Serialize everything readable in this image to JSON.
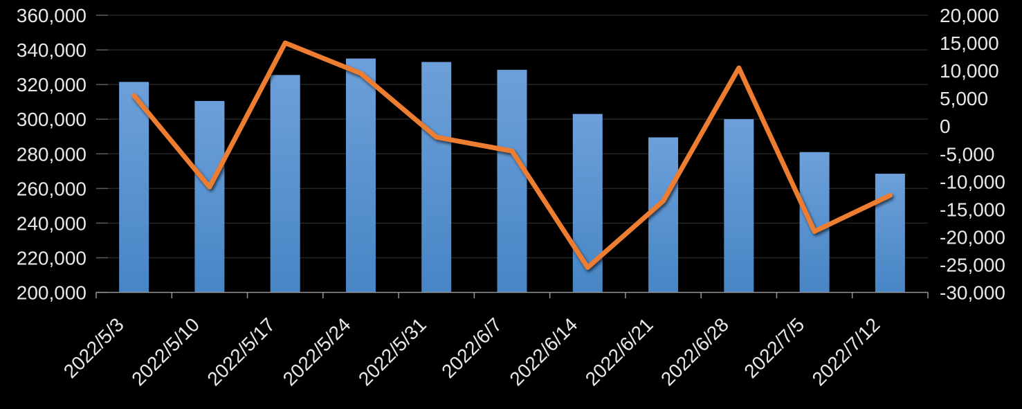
{
  "chart_data": {
    "type": "combo",
    "title": "",
    "legend_position": "none",
    "grid": true,
    "categories": [
      "2022/5/3",
      "2022/5/10",
      "2022/5/17",
      "2022/5/24",
      "2022/5/31",
      "2022/6/7",
      "2022/6/14",
      "2022/6/21",
      "2022/6/28",
      "2022/7/5",
      "2022/7/12"
    ],
    "series": [
      {
        "id": "bar-series",
        "type": "bar",
        "axis": "left",
        "values": [
          321500,
          310500,
          325500,
          335000,
          333000,
          328500,
          303000,
          289500,
          300000,
          281000,
          268500
        ]
      },
      {
        "id": "line-series",
        "type": "line",
        "axis": "right",
        "values": [
          5500,
          -11000,
          15000,
          9500,
          -2000,
          -4500,
          -25500,
          -13500,
          10500,
          -19000,
          -12500
        ]
      }
    ],
    "axes": {
      "left": {
        "min": 200000,
        "max": 360000,
        "step": 20000,
        "labels": [
          "360,000",
          "340,000",
          "320,000",
          "300,000",
          "280,000",
          "260,000",
          "240,000",
          "220,000",
          "200,000"
        ]
      },
      "right": {
        "min": -30000,
        "max": 20000,
        "step": 5000,
        "labels": [
          "20,000",
          "15,000",
          "10,000",
          "5,000",
          "0",
          "-5,000",
          "-10,000",
          "-15,000",
          "-20,000",
          "-25,000",
          "-30,000"
        ]
      }
    },
    "colors": {
      "background": "#000000",
      "text": "#e8e8e8",
      "gridline": "#2a2a2a",
      "axis_line": "#969696",
      "axis_tick": "#5a5a5a",
      "bar_top": "#6da0da",
      "bar_bottom": "#4785c5",
      "line": "#ed7d31"
    }
  }
}
